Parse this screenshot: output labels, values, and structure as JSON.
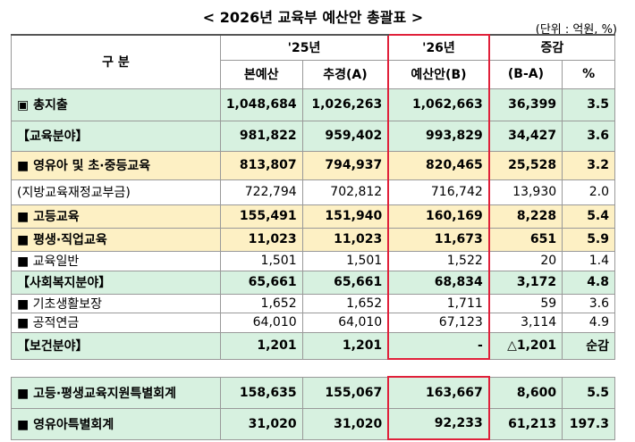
{
  "header": {
    "title": "< 2026년 교육부 예산안 총괄표 >",
    "unit": "(단위 : 억원, %)"
  },
  "table": {
    "head": {
      "category": "구 분",
      "year25": "'25년",
      "year26": "'26년",
      "change": "증감",
      "columns": [
        "본예산",
        "추경(A)",
        "예산안(B)",
        "(B-A)",
        "%"
      ]
    },
    "rows": [
      [
        "▣ 총지출",
        "1,048,684",
        "1,026,263",
        "1,062,663",
        "36,399",
        "3.5"
      ],
      [
        "【교육분야】",
        "981,822",
        "959,402",
        "993,829",
        "34,427",
        "3.6"
      ],
      [
        "■ 영유아 및 초·중등교육",
        "813,807",
        "794,937",
        "820,465",
        "25,528",
        "3.2"
      ],
      [
        "(지방교육재정교부금)",
        "722,794",
        "702,812",
        "716,742",
        "13,930",
        "2.0"
      ],
      [
        "■ 고등교육",
        "155,491",
        "151,940",
        "160,169",
        "8,228",
        "5.4"
      ],
      [
        "■ 평생·직업교육",
        "11,023",
        "11,023",
        "11,673",
        "651",
        "5.9"
      ],
      [
        "■ 교육일반",
        "1,501",
        "1,501",
        "1,522",
        "20",
        "1.4"
      ],
      [
        "【사회복지분야】",
        "65,661",
        "65,661",
        "68,834",
        "3,172",
        "4.8"
      ],
      [
        "■ 기초생활보장",
        "1,652",
        "1,652",
        "1,711",
        "59",
        "3.6"
      ],
      [
        "■ 공적연금",
        "64,010",
        "64,010",
        "67,123",
        "3,114",
        "4.9"
      ],
      [
        "【보건분야】",
        "1,201",
        "1,201",
        "-",
        "△1,201",
        "순감"
      ]
    ],
    "special_rows": [
      [
        "■ 고등·평생교육지원특별회계",
        "158,635",
        "155,067",
        "163,667",
        "8,600",
        "5.5"
      ],
      [
        "■ 영유아특별회계",
        "31,020",
        "31,020",
        "92,233",
        "61,213",
        "197.3"
      ]
    ]
  }
}
